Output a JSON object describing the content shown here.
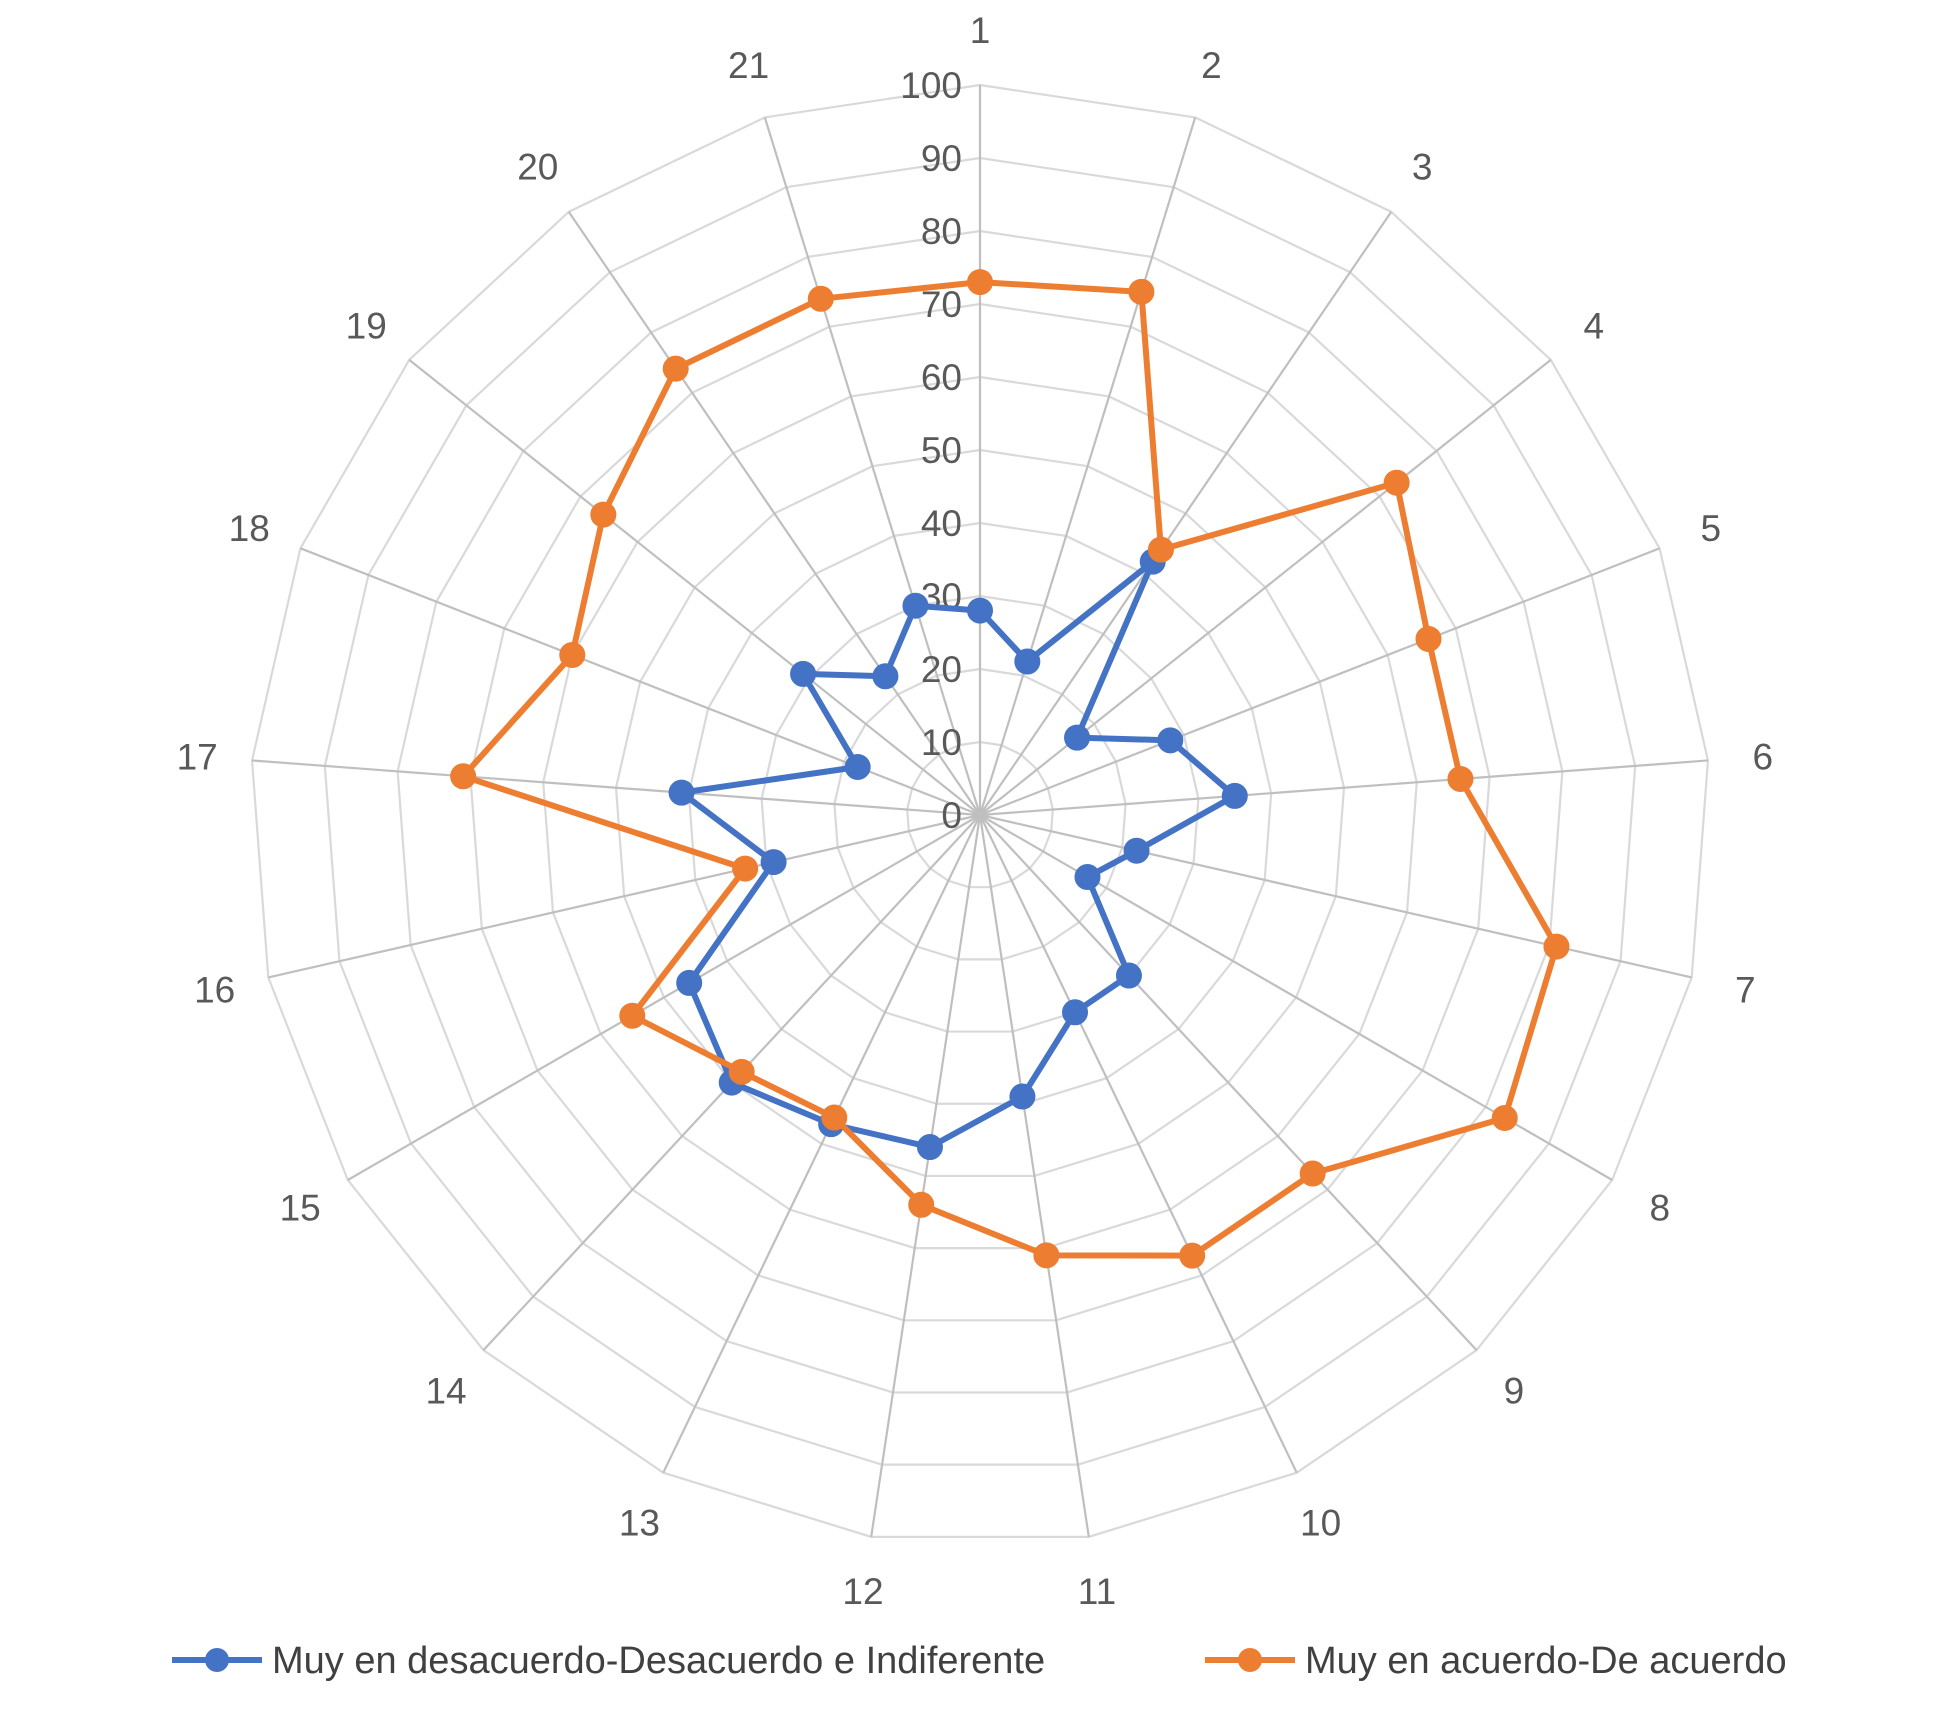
{
  "chart_data": {
    "type": "radar",
    "title": "",
    "categories": [
      "1",
      "2",
      "3",
      "4",
      "5",
      "6",
      "7",
      "8",
      "9",
      "10",
      "11",
      "12",
      "13",
      "14",
      "15",
      "16",
      "17",
      "18",
      "19",
      "20",
      "21"
    ],
    "r_ticks": [
      "0",
      "10",
      "20",
      "30",
      "40",
      "50",
      "60",
      "70",
      "80",
      "90",
      "100"
    ],
    "r_range": [
      0,
      100
    ],
    "grid": true,
    "legend_position": "bottom",
    "series": [
      {
        "name": "Muy en desacuerdo-Desacuerdo e Indiferente",
        "color": "#4472C4",
        "values": [
          28,
          22,
          42,
          17,
          28,
          35,
          22,
          17,
          30,
          30,
          39,
          46,
          47,
          50,
          46,
          29,
          41,
          18,
          31,
          23,
          30
        ]
      },
      {
        "name": "Muy en acuerdo-De acuerdo",
        "color": "#ED7D31",
        "values": [
          73,
          75,
          44,
          73,
          66,
          66,
          81,
          83,
          67,
          67,
          61,
          54,
          46,
          48,
          55,
          33,
          71,
          60,
          66,
          74,
          74
        ]
      }
    ]
  }
}
